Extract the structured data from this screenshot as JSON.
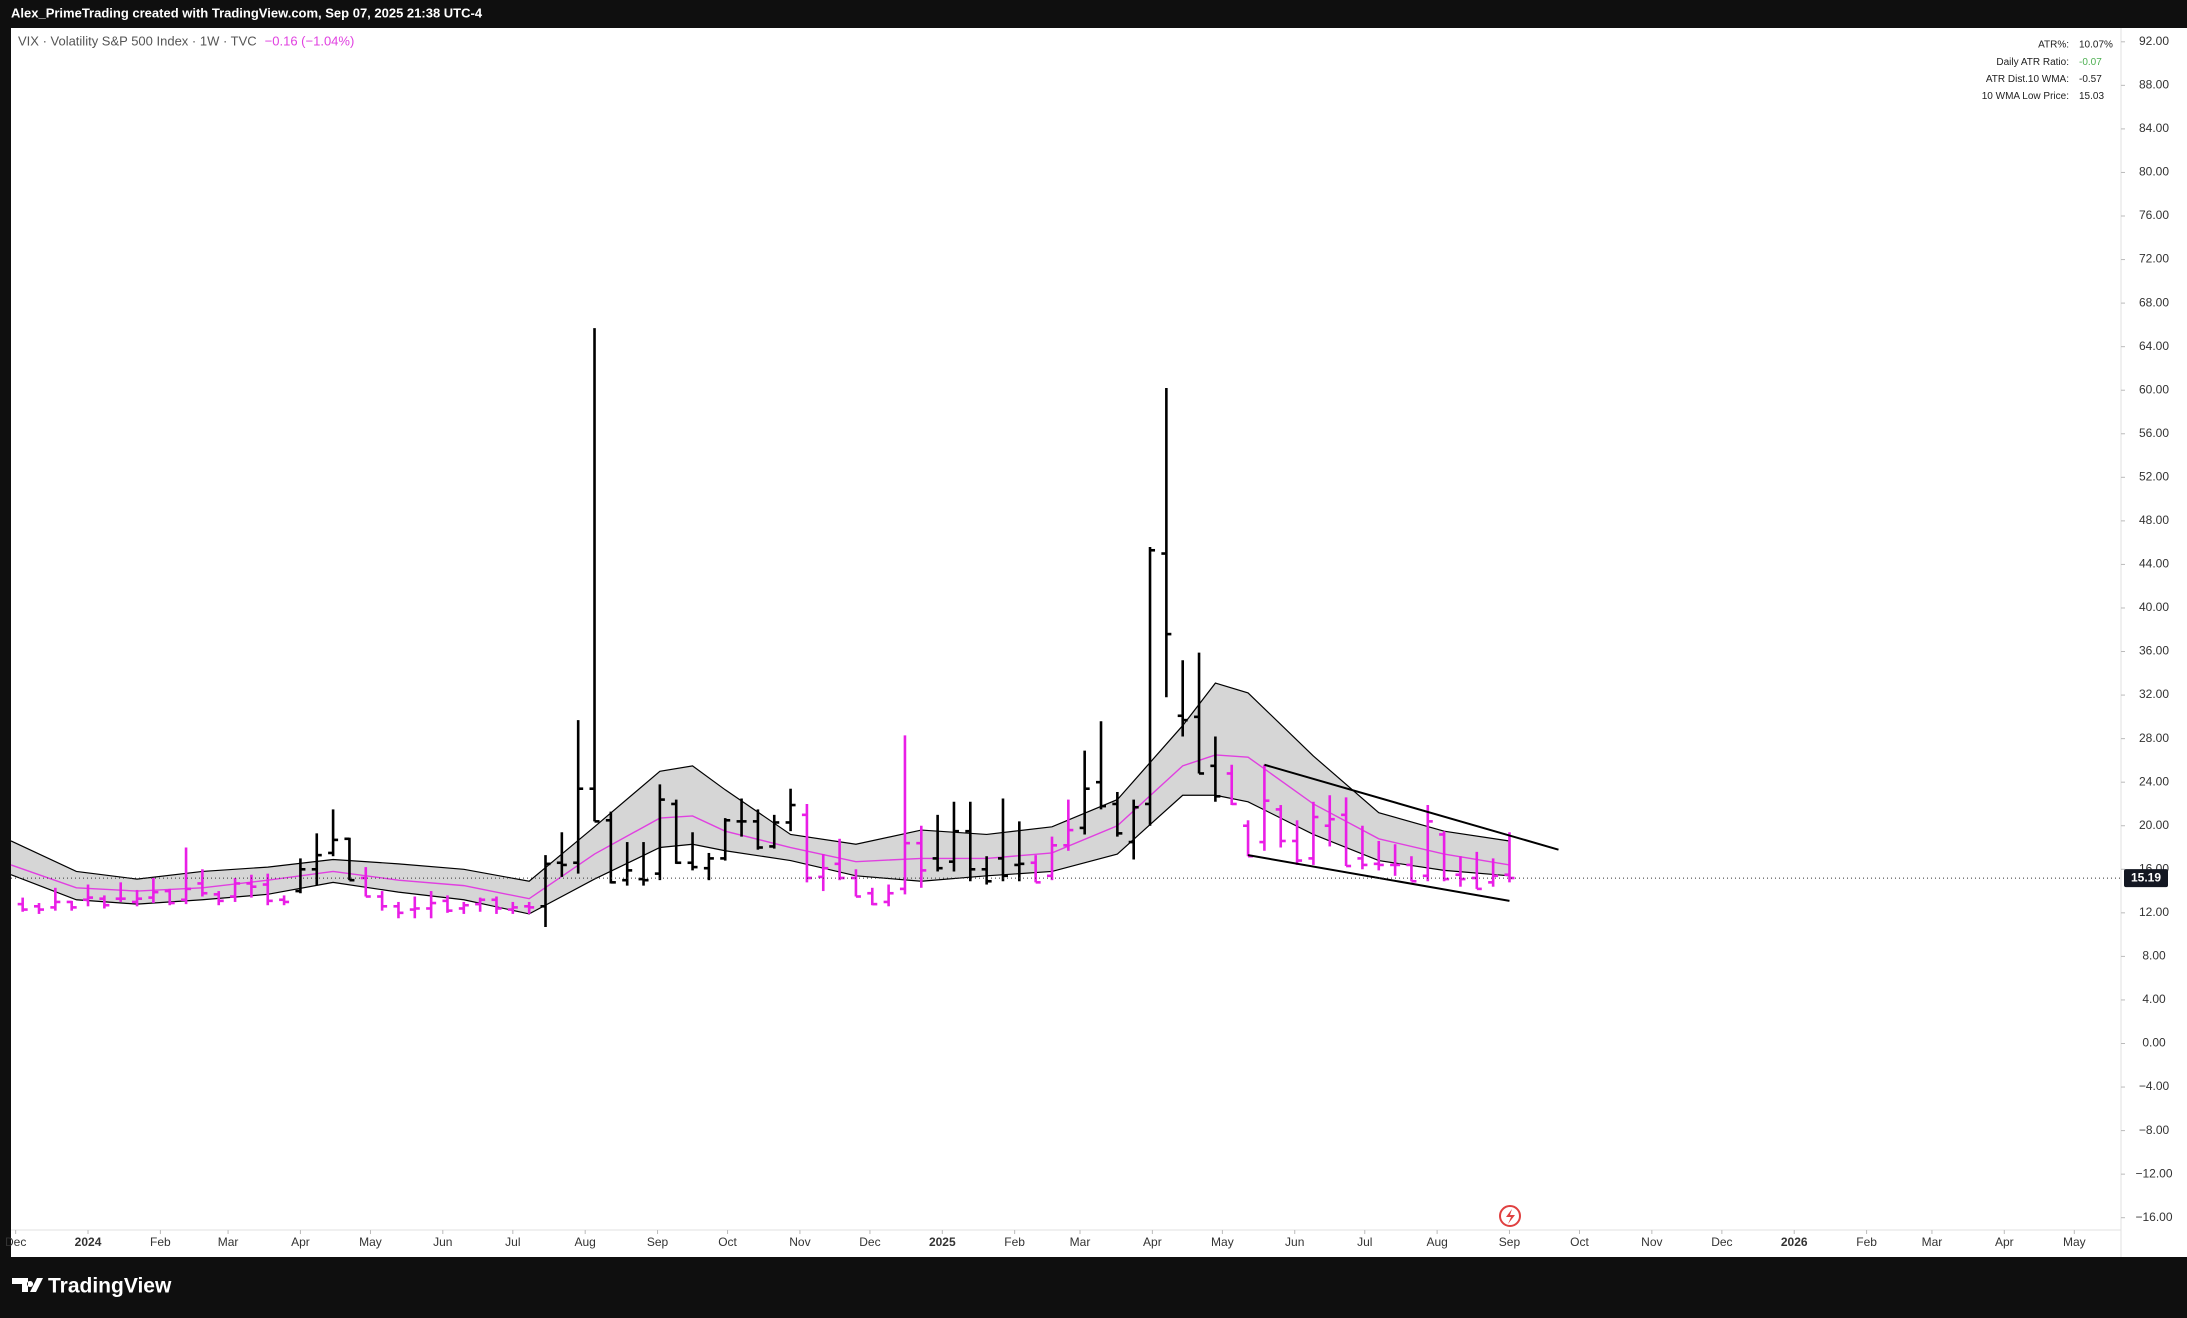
{
  "header": {
    "credit": "Alex_PrimeTrading created with TradingView.com, Sep 07, 2025 21:38 UTC-4"
  },
  "stats": [
    {
      "label": "ATR%:",
      "value": "10.07%"
    },
    {
      "label": "Daily ATR Ratio:",
      "value": "-0.07"
    },
    {
      "label": "ATR Dist.10 WMA:",
      "value": "-0.57"
    },
    {
      "label": "10 WMA Low Price:",
      "value": "15.03"
    }
  ],
  "footer": {
    "brand": "TradingView"
  },
  "chart_data": {
    "type": "ohlc",
    "title": "VIX · Volatility S&P 500 Index · 1W · TVC",
    "change": "−0.16 (−1.04%)",
    "change_color": "#e040e0",
    "xlim": [
      "2023-11-29",
      "2026-05-21"
    ],
    "xticks": [
      {
        "value": "2023-12-01",
        "label": "Dec"
      },
      {
        "value": "2024-01-01",
        "label": "2024"
      },
      {
        "value": "2024-02-01",
        "label": "Feb"
      },
      {
        "value": "2024-03-01",
        "label": "Mar"
      },
      {
        "value": "2024-04-01",
        "label": "Apr"
      },
      {
        "value": "2024-05-01",
        "label": "May"
      },
      {
        "value": "2024-06-01",
        "label": "Jun"
      },
      {
        "value": "2024-07-01",
        "label": "Jul"
      },
      {
        "value": "2024-08-01",
        "label": "Aug"
      },
      {
        "value": "2024-09-01",
        "label": "Sep"
      },
      {
        "value": "2024-10-01",
        "label": "Oct"
      },
      {
        "value": "2024-11-01",
        "label": "Nov"
      },
      {
        "value": "2024-12-01",
        "label": "Dec"
      },
      {
        "value": "2025-01-01",
        "label": "2025"
      },
      {
        "value": "2025-02-01",
        "label": "Feb"
      },
      {
        "value": "2025-03-01",
        "label": "Mar"
      },
      {
        "value": "2025-04-01",
        "label": "Apr"
      },
      {
        "value": "2025-05-01",
        "label": "May"
      },
      {
        "value": "2025-06-01",
        "label": "Jun"
      },
      {
        "value": "2025-07-01",
        "label": "Jul"
      },
      {
        "value": "2025-08-01",
        "label": "Aug"
      },
      {
        "value": "2025-09-01",
        "label": "Sep"
      },
      {
        "value": "2025-10-01",
        "label": "Oct"
      },
      {
        "value": "2025-11-01",
        "label": "Nov"
      },
      {
        "value": "2025-12-01",
        "label": "Dec"
      },
      {
        "value": "2026-01-01",
        "label": "2026"
      },
      {
        "value": "2026-02-01",
        "label": "Feb"
      },
      {
        "value": "2026-03-01",
        "label": "Mar"
      },
      {
        "value": "2026-04-01",
        "label": "Apr"
      },
      {
        "value": "2026-05-01",
        "label": "May"
      }
    ],
    "ylim": [
      -16,
      92
    ],
    "yticks": [
      {
        "value": 92,
        "label": "92.00"
      },
      {
        "value": 88,
        "label": "88.00"
      },
      {
        "value": 84,
        "label": "84.00"
      },
      {
        "value": 80,
        "label": "80.00"
      },
      {
        "value": 76,
        "label": "76.00"
      },
      {
        "value": 72,
        "label": "72.00"
      },
      {
        "value": 68,
        "label": "68.00"
      },
      {
        "value": 64,
        "label": "64.00"
      },
      {
        "value": 60,
        "label": "60.00"
      },
      {
        "value": 56,
        "label": "56.00"
      },
      {
        "value": 52,
        "label": "52.00"
      },
      {
        "value": 48,
        "label": "48.00"
      },
      {
        "value": 44,
        "label": "44.00"
      },
      {
        "value": 40,
        "label": "40.00"
      },
      {
        "value": 36,
        "label": "36.00"
      },
      {
        "value": 32,
        "label": "32.00"
      },
      {
        "value": 28,
        "label": "28.00"
      },
      {
        "value": 24,
        "label": "24.00"
      },
      {
        "value": 20,
        "label": "20.00"
      },
      {
        "value": 16,
        "label": "16.00"
      },
      {
        "value": 12,
        "label": "12.00"
      },
      {
        "value": 8,
        "label": "8.00"
      },
      {
        "value": 4,
        "label": "4.00"
      },
      {
        "value": 0,
        "label": "0.00"
      },
      {
        "value": -4,
        "label": "−4.00"
      },
      {
        "value": -8,
        "label": "−8.00"
      },
      {
        "value": -12,
        "label": "−12.00"
      },
      {
        "value": -16,
        "label": "−16.00"
      }
    ],
    "last_price": 15.19,
    "series": [
      {
        "type": "band",
        "fill": "#d6d6d6",
        "edge_color": "#000000",
        "x": [
          "2023-11-29",
          "2023-12-27",
          "2024-01-22",
          "2024-02-19",
          "2024-03-18",
          "2024-04-15",
          "2024-05-13",
          "2024-06-10",
          "2024-07-08",
          "2024-08-05",
          "2024-09-02",
          "2024-09-16",
          "2024-09-30",
          "2024-10-28",
          "2024-11-25",
          "2024-12-23",
          "2025-01-20",
          "2025-02-17",
          "2025-03-17",
          "2025-04-14",
          "2025-04-28",
          "2025-05-12",
          "2025-06-09",
          "2025-07-07",
          "2025-08-04",
          "2025-09-01"
        ],
        "upper": [
          18.6,
          15.8,
          15.1,
          15.8,
          16.2,
          16.9,
          16.5,
          16.0,
          14.9,
          19.9,
          25.0,
          25.5,
          23.3,
          19.2,
          18.3,
          19.6,
          19.2,
          19.9,
          22.4,
          29.2,
          33.1,
          32.2,
          26.4,
          21.2,
          19.5,
          18.6
        ],
        "lower": [
          15.5,
          13.2,
          12.8,
          13.2,
          13.7,
          14.8,
          13.9,
          13.2,
          11.9,
          15.1,
          18.0,
          18.3,
          17.7,
          16.8,
          15.4,
          14.9,
          15.4,
          15.8,
          17.4,
          22.8,
          22.8,
          22.2,
          19.2,
          16.8,
          15.9,
          15.4
        ]
      },
      {
        "type": "line",
        "color": "#e040e0",
        "x": [
          "2023-11-29",
          "2023-12-27",
          "2024-01-22",
          "2024-02-19",
          "2024-03-18",
          "2024-04-15",
          "2024-05-13",
          "2024-06-10",
          "2024-07-08",
          "2024-08-05",
          "2024-09-02",
          "2024-09-16",
          "2024-09-30",
          "2024-10-28",
          "2024-11-25",
          "2024-12-23",
          "2025-01-20",
          "2025-02-17",
          "2025-03-17",
          "2025-04-14",
          "2025-04-28",
          "2025-05-12",
          "2025-06-09",
          "2025-07-07",
          "2025-08-04",
          "2025-09-01"
        ],
        "values": [
          16.4,
          14.3,
          14.0,
          14.3,
          15.0,
          15.8,
          15.0,
          14.5,
          13.3,
          17.4,
          20.7,
          20.9,
          19.5,
          18.0,
          16.7,
          17.0,
          17.0,
          17.5,
          20.0,
          25.5,
          26.5,
          26.3,
          22.0,
          18.8,
          17.4,
          16.4
        ]
      },
      {
        "type": "ohlc",
        "color": "#e91ee6",
        "x": [
          "2023-12-04",
          "2023-12-11",
          "2023-12-18",
          "2023-12-25",
          "2024-01-01",
          "2024-01-08",
          "2024-01-15",
          "2024-01-22",
          "2024-01-29",
          "2024-02-05",
          "2024-02-12",
          "2024-02-19",
          "2024-02-26",
          "2024-03-04",
          "2024-03-11",
          "2024-03-18",
          "2024-03-25",
          "2024-04-29",
          "2024-05-06",
          "2024-05-13",
          "2024-05-20",
          "2024-05-27",
          "2024-06-03",
          "2024-06-10",
          "2024-06-17",
          "2024-06-24",
          "2024-07-01",
          "2024-07-08",
          "2024-11-04",
          "2024-11-11",
          "2024-11-18",
          "2024-11-25",
          "2024-12-02",
          "2024-12-09",
          "2024-12-16",
          "2024-12-23",
          "2025-02-10",
          "2025-02-17",
          "2025-02-24",
          "2025-05-05",
          "2025-05-12",
          "2025-05-19",
          "2025-05-26",
          "2025-06-02",
          "2025-06-09",
          "2025-06-16",
          "2025-06-23",
          "2025-06-30",
          "2025-07-07",
          "2025-07-14",
          "2025-07-21",
          "2025-07-28",
          "2025-08-04",
          "2025-08-11",
          "2025-08-18",
          "2025-08-25",
          "2025-09-01"
        ],
        "values": [
          [
            12.8,
            13.4,
            12.1,
            12.3
          ],
          [
            12.6,
            12.9,
            11.9,
            12.3
          ],
          [
            12.5,
            14.3,
            12.2,
            13.0
          ],
          [
            13.0,
            13.1,
            12.2,
            12.5
          ],
          [
            13.2,
            14.6,
            12.6,
            13.4
          ],
          [
            13.3,
            13.6,
            12.4,
            12.7
          ],
          [
            13.3,
            14.8,
            13.0,
            13.3
          ],
          [
            13.0,
            14.1,
            12.6,
            13.3
          ],
          [
            13.4,
            15.2,
            12.9,
            13.9
          ],
          [
            14.0,
            14.2,
            12.7,
            12.9
          ],
          [
            13.2,
            18.0,
            12.8,
            14.2
          ],
          [
            14.7,
            16.0,
            13.5,
            13.8
          ],
          [
            13.7,
            14.0,
            12.7,
            13.1
          ],
          [
            13.5,
            15.2,
            13.0,
            14.7
          ],
          [
            14.7,
            15.5,
            13.4,
            14.4
          ],
          [
            14.6,
            15.6,
            12.7,
            13.1
          ],
          [
            13.2,
            13.6,
            12.7,
            13.0
          ],
          [
            15.2,
            16.2,
            13.5,
            13.5
          ],
          [
            13.5,
            14.0,
            12.2,
            12.6
          ],
          [
            12.6,
            13.0,
            11.5,
            12.0
          ],
          [
            12.3,
            13.5,
            11.5,
            12.4
          ],
          [
            12.4,
            14.0,
            11.5,
            12.9
          ],
          [
            13.1,
            13.6,
            12.0,
            12.2
          ],
          [
            12.4,
            13.0,
            11.9,
            12.7
          ],
          [
            12.8,
            13.4,
            12.1,
            13.2
          ],
          [
            13.2,
            13.5,
            11.9,
            12.4
          ],
          [
            12.3,
            13.0,
            11.9,
            12.5
          ],
          [
            12.6,
            13.0,
            11.9,
            12.5
          ],
          [
            21.0,
            22.0,
            14.8,
            15.2
          ],
          [
            15.3,
            17.4,
            14.0,
            16.1
          ],
          [
            16.5,
            18.8,
            15.0,
            15.2
          ],
          [
            15.2,
            16.0,
            13.5,
            13.5
          ],
          [
            13.8,
            14.3,
            12.7,
            12.8
          ],
          [
            13.0,
            14.6,
            12.6,
            13.8
          ],
          [
            14.2,
            28.3,
            13.7,
            18.4
          ],
          [
            18.4,
            20.0,
            14.3,
            15.9
          ],
          [
            16.6,
            17.3,
            14.8,
            14.8
          ],
          [
            15.4,
            19.0,
            15.0,
            18.2
          ],
          [
            18.2,
            22.4,
            17.7,
            19.6
          ],
          [
            24.8,
            25.6,
            21.9,
            22.0
          ],
          [
            20.0,
            20.5,
            17.2,
            17.2
          ],
          [
            18.5,
            25.6,
            17.7,
            22.3
          ],
          [
            21.5,
            21.9,
            18.0,
            18.6
          ],
          [
            18.6,
            20.5,
            16.4,
            16.8
          ],
          [
            17.0,
            22.2,
            16.4,
            20.8
          ],
          [
            20.0,
            22.8,
            18.1,
            20.6
          ],
          [
            21.0,
            22.6,
            16.3,
            16.3
          ],
          [
            17.0,
            20.0,
            16.0,
            16.4
          ],
          [
            16.5,
            18.6,
            15.9,
            16.4
          ],
          [
            16.4,
            18.3,
            15.4,
            16.4
          ],
          [
            16.4,
            17.2,
            14.9,
            14.9
          ],
          [
            15.4,
            21.9,
            14.9,
            20.4
          ],
          [
            19.2,
            19.5,
            14.9,
            15.1
          ],
          [
            15.5,
            17.2,
            14.4,
            15.1
          ],
          [
            15.2,
            17.6,
            14.2,
            14.2
          ],
          [
            14.8,
            17.0,
            14.4,
            15.4
          ],
          [
            15.5,
            19.4,
            14.8,
            15.2
          ]
        ]
      },
      {
        "type": "ohlc",
        "color": "#000000",
        "x": [
          "2024-04-01",
          "2024-04-08",
          "2024-04-15",
          "2024-04-22",
          "2024-07-15",
          "2024-07-22",
          "2024-07-29",
          "2024-08-05",
          "2024-08-12",
          "2024-08-19",
          "2024-08-26",
          "2024-09-02",
          "2024-09-09",
          "2024-09-16",
          "2024-09-23",
          "2024-09-30",
          "2024-10-07",
          "2024-10-14",
          "2024-10-21",
          "2024-10-28",
          "2024-12-30",
          "2025-01-06",
          "2025-01-13",
          "2025-01-20",
          "2025-01-27",
          "2025-02-03",
          "2025-03-03",
          "2025-03-10",
          "2025-03-17",
          "2025-03-24",
          "2025-03-31",
          "2025-04-07",
          "2025-04-14",
          "2025-04-21",
          "2025-04-28"
        ],
        "values": [
          [
            14.0,
            17.0,
            13.8,
            16.0
          ],
          [
            16.0,
            19.3,
            14.5,
            17.3
          ],
          [
            17.5,
            21.5,
            17.2,
            18.7
          ],
          [
            18.8,
            18.9,
            15.0,
            15.0
          ],
          [
            12.6,
            17.3,
            10.7,
            16.5
          ],
          [
            16.6,
            19.4,
            15.3,
            16.4
          ],
          [
            16.6,
            29.7,
            15.6,
            23.4
          ],
          [
            23.4,
            65.7,
            20.4,
            20.4
          ],
          [
            20.5,
            21.3,
            14.7,
            14.8
          ],
          [
            15.0,
            18.5,
            14.5,
            15.9
          ],
          [
            15.1,
            18.5,
            14.5,
            15.0
          ],
          [
            15.6,
            23.8,
            15.0,
            22.4
          ],
          [
            22.0,
            22.4,
            16.5,
            16.6
          ],
          [
            16.6,
            19.4,
            15.9,
            16.2
          ],
          [
            16.1,
            17.5,
            15.0,
            17.0
          ],
          [
            17.0,
            20.7,
            16.8,
            20.5
          ],
          [
            20.4,
            22.5,
            19.0,
            20.4
          ],
          [
            20.4,
            21.5,
            17.8,
            18.0
          ],
          [
            18.1,
            21.0,
            17.9,
            20.3
          ],
          [
            20.3,
            23.4,
            19.5,
            21.9
          ],
          [
            17.0,
            21.0,
            15.8,
            16.1
          ],
          [
            16.7,
            22.2,
            15.8,
            19.5
          ],
          [
            19.5,
            22.2,
            14.9,
            16.0
          ],
          [
            16.0,
            17.2,
            14.6,
            14.9
          ],
          [
            17.0,
            22.5,
            14.9,
            15.4
          ],
          [
            16.4,
            20.4,
            14.9,
            16.5
          ],
          [
            19.8,
            26.9,
            19.2,
            23.4
          ],
          [
            24.0,
            29.6,
            21.5,
            21.8
          ],
          [
            22.0,
            23.1,
            19.0,
            19.3
          ],
          [
            18.5,
            22.4,
            16.9,
            21.7
          ],
          [
            22.0,
            45.6,
            20.0,
            45.3
          ],
          [
            45.0,
            60.2,
            31.8,
            37.6
          ],
          [
            30.1,
            35.2,
            28.2,
            29.7
          ],
          [
            30.0,
            35.9,
            24.8,
            24.8
          ],
          [
            25.5,
            28.2,
            22.2,
            22.7
          ]
        ]
      },
      {
        "type": "trendline",
        "color": "#000000",
        "x": [
          "2025-05-19",
          "2025-09-22"
        ],
        "values": [
          25.6,
          17.8
        ]
      },
      {
        "type": "trendline",
        "color": "#000000",
        "x": [
          "2025-05-12",
          "2025-09-01"
        ],
        "values": [
          17.3,
          13.1
        ]
      }
    ]
  }
}
